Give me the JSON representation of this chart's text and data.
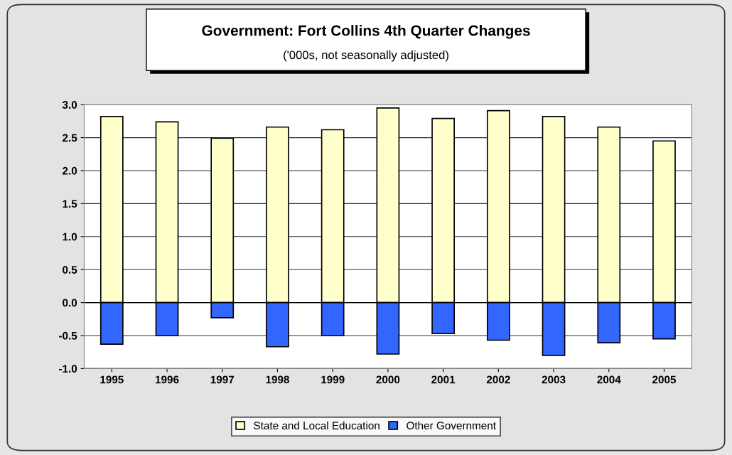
{
  "chart_data": {
    "type": "bar",
    "title": "Government: Fort Collins 4th Quarter Changes",
    "subtitle": "('000s, not seasonally adjusted)",
    "categories": [
      "1995",
      "1996",
      "1997",
      "1998",
      "1999",
      "2000",
      "2001",
      "2002",
      "2003",
      "2004",
      "2005"
    ],
    "series": [
      {
        "name": "State and Local Education",
        "color": "#ffffcc",
        "values": [
          2.82,
          2.74,
          2.49,
          2.66,
          2.62,
          2.95,
          2.79,
          2.91,
          2.82,
          2.66,
          2.45
        ]
      },
      {
        "name": "Other Government",
        "color": "#3366ff",
        "values": [
          -0.63,
          -0.5,
          -0.23,
          -0.67,
          -0.5,
          -0.78,
          -0.47,
          -0.57,
          -0.8,
          -0.61,
          -0.55
        ]
      }
    ],
    "stacked": true,
    "ylim": [
      -1,
      3
    ],
    "yticks": [
      {
        "value": -1,
        "label": "-1.0"
      },
      {
        "value": -0.5,
        "label": "-0.5"
      },
      {
        "value": 0,
        "label": "0.0"
      },
      {
        "value": 0.5,
        "label": "0.5"
      },
      {
        "value": 1,
        "label": "1.0"
      },
      {
        "value": 1.5,
        "label": "1.5"
      },
      {
        "value": 2,
        "label": "2.0"
      },
      {
        "value": 2.5,
        "label": "2.5"
      },
      {
        "value": 3,
        "label": "3.0"
      }
    ],
    "grid": "y",
    "legend": "bottom"
  }
}
